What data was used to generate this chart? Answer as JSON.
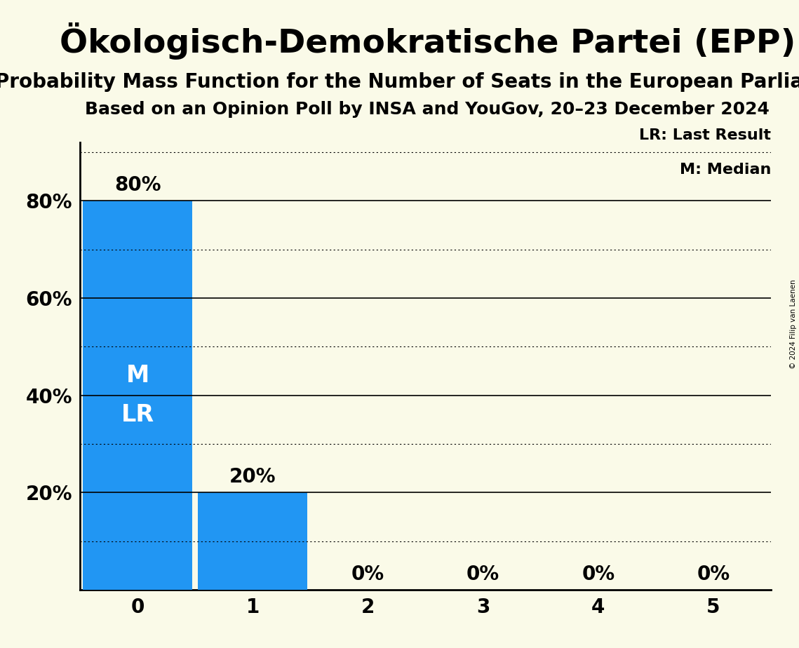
{
  "title": "Ökologisch-Demokratische Partei (EPP)",
  "subtitle1": "Probability Mass Function for the Number of Seats in the European Parliament",
  "subtitle2": "Based on an Opinion Poll by INSA and YouGov, 20–23 December 2024",
  "copyright": "© 2024 Filip van Laenen",
  "categories": [
    0,
    1,
    2,
    3,
    4,
    5
  ],
  "values": [
    0.8,
    0.2,
    0.0,
    0.0,
    0.0,
    0.0
  ],
  "bar_color": "#2196F3",
  "background_color": "#FAFAE8",
  "yticks": [
    0.0,
    0.2,
    0.4,
    0.6,
    0.8
  ],
  "ytick_labels": [
    "",
    "20%",
    "40%",
    "60%",
    "80%"
  ],
  "ylim": [
    0,
    0.92
  ],
  "solid_lines": [
    0.2,
    0.4,
    0.6,
    0.8
  ],
  "dotted_lines": [
    0.1,
    0.3,
    0.5,
    0.7,
    0.9
  ],
  "median_seat": 0,
  "last_result_seat": 0,
  "legend_lr": "LR: Last Result",
  "legend_m": "M: Median",
  "bar_label_fontsize": 20,
  "title_fontsize": 34,
  "subtitle1_fontsize": 20,
  "subtitle2_fontsize": 18,
  "axis_label_fontsize": 20,
  "legend_fontsize": 16
}
